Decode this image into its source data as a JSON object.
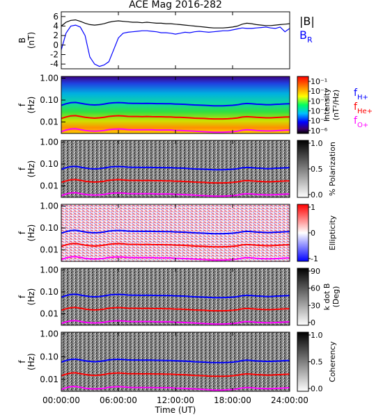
{
  "title": "ACE Mag 2016-282",
  "x_axis": {
    "label": "Time (UT)",
    "ticks": [
      "00:00:00",
      "06:00:00",
      "12:00:00",
      "18:00:00",
      "24:00:00"
    ],
    "range_hours": [
      0,
      24
    ]
  },
  "colors": {
    "B_total": "#000000",
    "B_R": "#0000ff",
    "f_H": "#0000ff",
    "f_He": "#ff0000",
    "f_O": "#ff00ff"
  },
  "panels": [
    {
      "id": "mag",
      "ylabel_1": "B",
      "ylabel_2": "(nT)",
      "yticks": [
        "6",
        "4",
        "2",
        "0",
        "-2",
        "-4"
      ],
      "legend": [
        {
          "text": "|B|",
          "color": "#000000"
        },
        {
          "text": "B",
          "sub": "R",
          "color": "#0000ff"
        }
      ]
    },
    {
      "id": "intensity",
      "ylabel_1": "f",
      "ylabel_2": "(Hz)",
      "yticks": [
        "1.00",
        "0.10",
        "0.01"
      ],
      "cbar_title_1": "Intensity",
      "cbar_title_2": "(nT²/Hz)",
      "cbar_ticks": [
        "10⁻¹",
        "10⁻²",
        "10⁻³",
        "10⁻⁴",
        "10⁻⁵",
        "10⁻⁶"
      ],
      "legend": [
        {
          "text": "f",
          "sub": "H+",
          "color": "#0000ff"
        },
        {
          "text": "f",
          "sub": "He+",
          "color": "#ff0000"
        },
        {
          "text": "f",
          "sub": "O+",
          "color": "#ff00ff"
        }
      ]
    },
    {
      "id": "polarization",
      "ylabel_1": "f",
      "ylabel_2": "(Hz)",
      "yticks": [
        "1.00",
        "0.10",
        "0.01"
      ],
      "cbar_title_1": "% Polarization",
      "cbar_ticks": [
        "1.0",
        "0.5",
        "0.0"
      ]
    },
    {
      "id": "ellipticity",
      "ylabel_1": "f",
      "ylabel_2": "(Hz)",
      "yticks": [
        "1.00",
        "0.10",
        "0.01"
      ],
      "cbar_title_1": "Ellipticity",
      "cbar_ticks": [
        "1",
        "0",
        "-1"
      ]
    },
    {
      "id": "kdotb",
      "ylabel_1": "f",
      "ylabel_2": "(Hz)",
      "yticks": [
        "1.00",
        "0.10",
        "0.01"
      ],
      "cbar_title_1": "k dot B",
      "cbar_title_2": "(Deg)",
      "cbar_ticks": [
        "90",
        "60",
        "30",
        "0"
      ]
    },
    {
      "id": "coherency",
      "ylabel_1": "f",
      "ylabel_2": "(Hz)",
      "yticks": [
        "1.00",
        "0.10",
        "0.01"
      ],
      "cbar_title_1": "Coherency",
      "cbar_ticks": [
        "1.0",
        "0.5",
        "0.0"
      ]
    }
  ],
  "chart_data": {
    "type": "line",
    "time_hours": [
      0,
      0.5,
      1,
      1.5,
      2,
      2.5,
      3,
      3.5,
      4,
      4.5,
      5,
      5.5,
      6,
      6.5,
      7,
      7.5,
      8,
      8.5,
      9,
      9.5,
      10,
      10.5,
      11,
      11.5,
      12,
      12.5,
      13,
      13.5,
      14,
      14.5,
      15,
      15.5,
      16,
      16.5,
      17,
      17.5,
      18,
      18.5,
      19,
      19.5,
      20,
      20.5,
      21,
      21.5,
      22,
      22.5,
      23,
      23.5,
      24
    ],
    "B_total_nT": [
      4.0,
      4.8,
      5.2,
      5.3,
      5.0,
      4.6,
      4.3,
      4.2,
      4.3,
      4.5,
      4.8,
      5.0,
      5.1,
      5.0,
      4.9,
      4.8,
      4.8,
      4.7,
      4.8,
      4.7,
      4.6,
      4.6,
      4.5,
      4.5,
      4.4,
      4.3,
      4.2,
      4.1,
      4.0,
      3.9,
      3.8,
      3.7,
      3.6,
      3.6,
      3.6,
      3.7,
      3.8,
      4.0,
      4.4,
      4.6,
      4.5,
      4.3,
      4.2,
      4.1,
      4.1,
      4.2,
      4.3,
      4.4,
      4.5
    ],
    "B_R_nT": [
      -1.0,
      2.5,
      4.0,
      4.2,
      3.8,
      2.0,
      -2.5,
      -4.0,
      -4.5,
      -4.2,
      -3.5,
      -1.0,
      1.5,
      2.5,
      2.7,
      2.8,
      2.9,
      3.0,
      3.0,
      2.9,
      2.8,
      2.6,
      2.6,
      2.5,
      2.3,
      2.5,
      2.7,
      2.6,
      2.8,
      2.9,
      2.8,
      2.7,
      2.8,
      2.9,
      3.0,
      3.0,
      3.2,
      3.4,
      3.6,
      3.5,
      3.5,
      3.6,
      3.7,
      3.8,
      3.6,
      3.5,
      3.8,
      2.8,
      3.5
    ],
    "f_H_Hz": [
      0.058,
      0.068,
      0.076,
      0.078,
      0.072,
      0.066,
      0.062,
      0.06,
      0.062,
      0.066,
      0.072,
      0.075,
      0.077,
      0.075,
      0.072,
      0.071,
      0.071,
      0.07,
      0.071,
      0.07,
      0.069,
      0.069,
      0.068,
      0.068,
      0.066,
      0.065,
      0.064,
      0.062,
      0.06,
      0.059,
      0.058,
      0.056,
      0.055,
      0.055,
      0.055,
      0.056,
      0.058,
      0.061,
      0.067,
      0.07,
      0.068,
      0.065,
      0.064,
      0.062,
      0.062,
      0.064,
      0.065,
      0.067,
      0.068
    ],
    "f_He_Hz": [
      0.0145,
      0.017,
      0.019,
      0.0195,
      0.018,
      0.0165,
      0.0155,
      0.015,
      0.0155,
      0.0165,
      0.018,
      0.0188,
      0.0193,
      0.0188,
      0.018,
      0.0178,
      0.0178,
      0.0175,
      0.0178,
      0.0175,
      0.0173,
      0.0173,
      0.017,
      0.017,
      0.0165,
      0.0163,
      0.016,
      0.0155,
      0.015,
      0.0148,
      0.0145,
      0.014,
      0.0138,
      0.0138,
      0.0138,
      0.014,
      0.0145,
      0.0153,
      0.0168,
      0.0175,
      0.017,
      0.0163,
      0.016,
      0.0155,
      0.0155,
      0.016,
      0.0163,
      0.0168,
      0.017
    ],
    "f_O_Hz": [
      0.0036,
      0.0043,
      0.0048,
      0.0049,
      0.0045,
      0.0041,
      0.0039,
      0.0038,
      0.0039,
      0.0041,
      0.0045,
      0.0047,
      0.0048,
      0.0047,
      0.0045,
      0.0044,
      0.0044,
      0.0044,
      0.0044,
      0.0044,
      0.0043,
      0.0043,
      0.0043,
      0.0043,
      0.0041,
      0.0041,
      0.004,
      0.0039,
      0.0038,
      0.0037,
      0.0036,
      0.0035,
      0.0034,
      0.0034,
      0.0034,
      0.0035,
      0.0036,
      0.0038,
      0.0042,
      0.0044,
      0.0043,
      0.0041,
      0.004,
      0.0039,
      0.0039,
      0.004,
      0.0041,
      0.0042,
      0.0043
    ],
    "mag_ylim_nT": [
      -5,
      7
    ],
    "freq_ylim_Hz": [
      0.003,
      1.2
    ],
    "freq_scale": "log",
    "intensity_cbar_range_log10": [
      -6.3,
      -0.5
    ],
    "polarization_range": [
      0,
      1
    ],
    "ellipticity_range": [
      -1,
      1
    ],
    "kdotb_range_deg": [
      0,
      90
    ],
    "coherency_range": [
      0,
      1
    ]
  }
}
